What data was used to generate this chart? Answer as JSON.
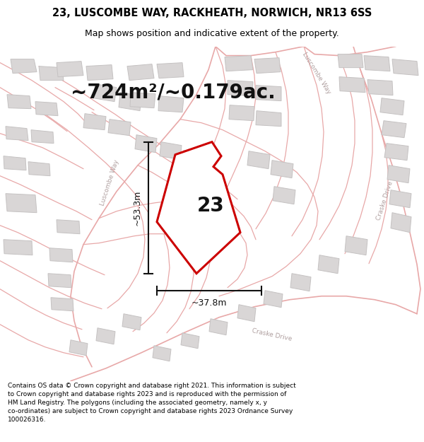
{
  "title": "23, LUSCOMBE WAY, RACKHEATH, NORWICH, NR13 6SS",
  "subtitle": "Map shows position and indicative extent of the property.",
  "area_text": "~724m²/~0.179ac.",
  "width_label": "~37.8m",
  "height_label": "~53.3m",
  "number_label": "23",
  "footer": "Contains OS data © Crown copyright and database right 2021. This information is subject to Crown copyright and database rights 2023 and is reproduced with the permission of HM Land Registry. The polygons (including the associated geometry, namely x, y co-ordinates) are subject to Crown copyright and database rights 2023 Ordnance Survey 100026316.",
  "bg_color": "#f5f3f3",
  "map_bg": "#f5f3f3",
  "property_color": "#cc0000",
  "property_fill": "#ffffff",
  "road_color": "#e8a8a8",
  "plot_color": "#e8a8a8",
  "building_color": "#d9d6d6",
  "building_edge": "#c5c2c2",
  "dim_line_color": "#111111",
  "road_label_color": "#b0a0a0",
  "title_fontsize": 10.5,
  "subtitle_fontsize": 9.0,
  "area_fontsize": 20,
  "label_fontsize": 9,
  "number_fontsize": 20,
  "footer_fontsize": 6.5,
  "road_lw": 0.9,
  "plot_lw": 0.8
}
